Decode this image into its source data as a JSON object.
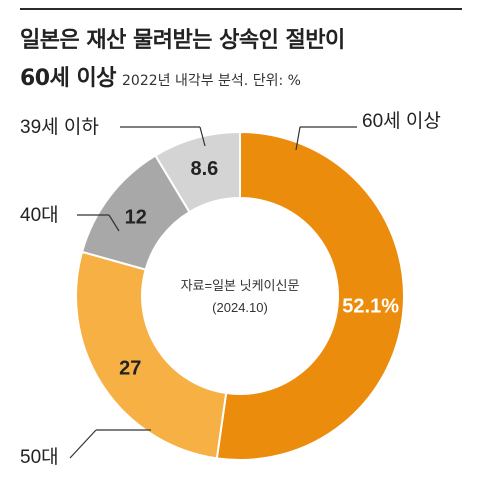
{
  "title": "일본은 재산 물려받는 상속인 절반이",
  "subtitle": {
    "strong": "60세 이상",
    "note": "2022년 내각부 분석. 단위: %"
  },
  "chart_data": {
    "type": "donut",
    "slices": [
      {
        "label": "60세 이상",
        "value": 52.1,
        "display": "52.1%",
        "color": "#ec8c0c"
      },
      {
        "label": "50대",
        "value": 27,
        "display": "27",
        "color": "#f6b044"
      },
      {
        "label": "40대",
        "value": 12,
        "display": "12",
        "color": "#a8a8a8"
      },
      {
        "label": "39세 이하",
        "value": 8.6,
        "display": "8.6",
        "color": "#d4d4d4"
      }
    ],
    "center_text": [
      "자료=일본 닛케이신문",
      "(2024.10)"
    ]
  }
}
